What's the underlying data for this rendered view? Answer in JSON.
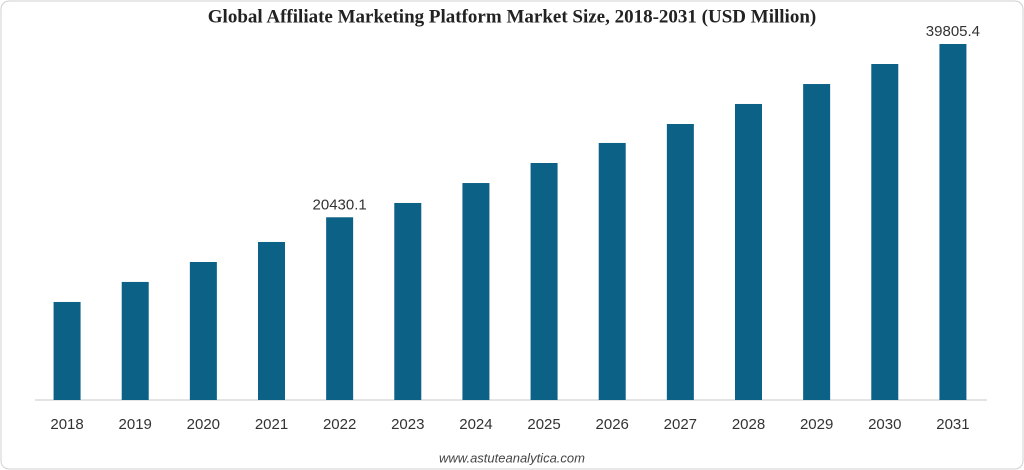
{
  "chart_data": {
    "type": "bar",
    "title": "Global Affiliate Marketing Platform Market Size, 2018-2031 (USD Million)",
    "categories": [
      "2018",
      "2019",
      "2020",
      "2021",
      "2022",
      "2023",
      "2024",
      "2025",
      "2026",
      "2027",
      "2028",
      "2029",
      "2030",
      "2031"
    ],
    "values": [
      10960,
      13200,
      15430,
      17670,
      20430.1,
      22030,
      24260,
      26500,
      28740,
      30860,
      33100,
      35330,
      37570,
      39805.4
    ],
    "value_labels": [
      null,
      null,
      null,
      null,
      "20430.1",
      null,
      null,
      null,
      null,
      null,
      null,
      null,
      null,
      "39805.4"
    ],
    "color": "#0b6186",
    "source": "www.astuteanalytica.com"
  }
}
